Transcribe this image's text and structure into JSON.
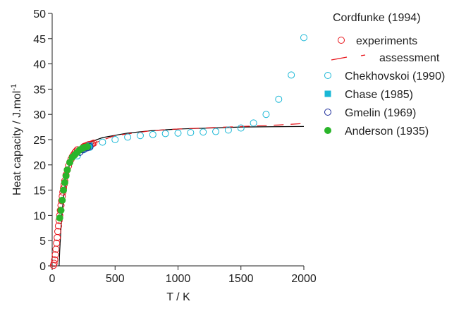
{
  "chart_data": {
    "type": "scatter",
    "xlabel": "T / K",
    "ylabel": {
      "text": "Heat capacity / J.mol",
      "sup": "-1"
    },
    "xlim": [
      0,
      2000
    ],
    "xticks": [
      0,
      500,
      1000,
      1500,
      2000
    ],
    "ylim": [
      0,
      50
    ],
    "yticks": [
      0,
      5,
      10,
      15,
      20,
      25,
      30,
      35,
      40,
      45,
      50
    ],
    "legend_title": "Cordfunke (1994)",
    "series": [
      {
        "color": "#000000",
        "marker": "line",
        "x": [
          55,
          60,
          70,
          80,
          100,
          120,
          150,
          200,
          300,
          400,
          600,
          800,
          1000,
          1500,
          2000
        ],
        "values": [
          0,
          3,
          7.5,
          11,
          15.5,
          18.5,
          21,
          23,
          24.5,
          25.4,
          26.3,
          26.8,
          27.1,
          27.5,
          27.6
        ]
      },
      {
        "name": "experiments",
        "color": "#e8141a",
        "text_color": "#e8141a",
        "marker": "open-circle",
        "x": [
          10,
          15,
          20,
          25,
          30,
          35,
          40,
          45,
          50,
          55,
          60,
          65,
          70,
          75,
          80,
          85,
          90,
          95,
          100,
          110,
          120,
          130,
          140,
          150,
          160,
          170,
          180,
          190,
          200,
          250,
          260,
          270,
          280,
          290,
          300,
          310,
          320,
          330
        ],
        "values": [
          0.1,
          0.5,
          1.2,
          2.2,
          3.3,
          4.5,
          5.6,
          6.8,
          7.9,
          9,
          10,
          11,
          12,
          12.9,
          13.8,
          14.6,
          15.4,
          16.1,
          16.8,
          18,
          19,
          19.8,
          20.5,
          21.1,
          21.6,
          22,
          22.4,
          22.7,
          23,
          23.6,
          23.7,
          23.8,
          23.9,
          24,
          24,
          24.1,
          24.2,
          24.3
        ]
      },
      {
        "name": "assessment",
        "color": "#e8141a",
        "text_color": "#e8141a",
        "marker": "dashed-line",
        "x": [
          298,
          500,
          800,
          1000,
          1200,
          1500,
          1800,
          2000
        ],
        "values": [
          24,
          25.8,
          26.8,
          27.1,
          27.3,
          27.6,
          27.9,
          28.2
        ]
      },
      {
        "name": "Chekhovskoi (1990)",
        "color": "#19b7d6",
        "marker": "open-circle",
        "x": [
          200,
          250,
          300,
          400,
          500,
          600,
          700,
          800,
          900,
          1000,
          1100,
          1200,
          1300,
          1400,
          1500,
          1600,
          1700,
          1800,
          1900,
          2000
        ],
        "values": [
          21.8,
          23,
          23.5,
          24.5,
          25,
          25.5,
          25.8,
          26,
          26.2,
          26.3,
          26.4,
          26.5,
          26.6,
          26.9,
          27.3,
          28.3,
          30,
          33,
          37.8,
          45.2
        ]
      },
      {
        "name": "Chase (1985)",
        "color": "#19b7d6",
        "marker": "square",
        "x": [
          298
        ],
        "values": [
          23.8
        ]
      },
      {
        "name": "Gmelin (1969)",
        "color": "#1a2a9a",
        "marker": "open-circle",
        "x": [
          220,
          240,
          260,
          280,
          300
        ],
        "values": [
          22.5,
          23,
          23.2,
          23.4,
          23.6
        ]
      },
      {
        "name": "Anderson (1935)",
        "color": "#2ab52a",
        "marker": "filled-circle",
        "x": [
          60,
          70,
          80,
          90,
          100,
          110,
          120,
          140,
          160,
          180,
          200,
          220,
          240,
          260,
          280
        ],
        "values": [
          9.5,
          11,
          13,
          15,
          16.5,
          17.8,
          19,
          20.5,
          21.5,
          22,
          22.5,
          23,
          23.3,
          23.5,
          23.6
        ]
      }
    ]
  }
}
